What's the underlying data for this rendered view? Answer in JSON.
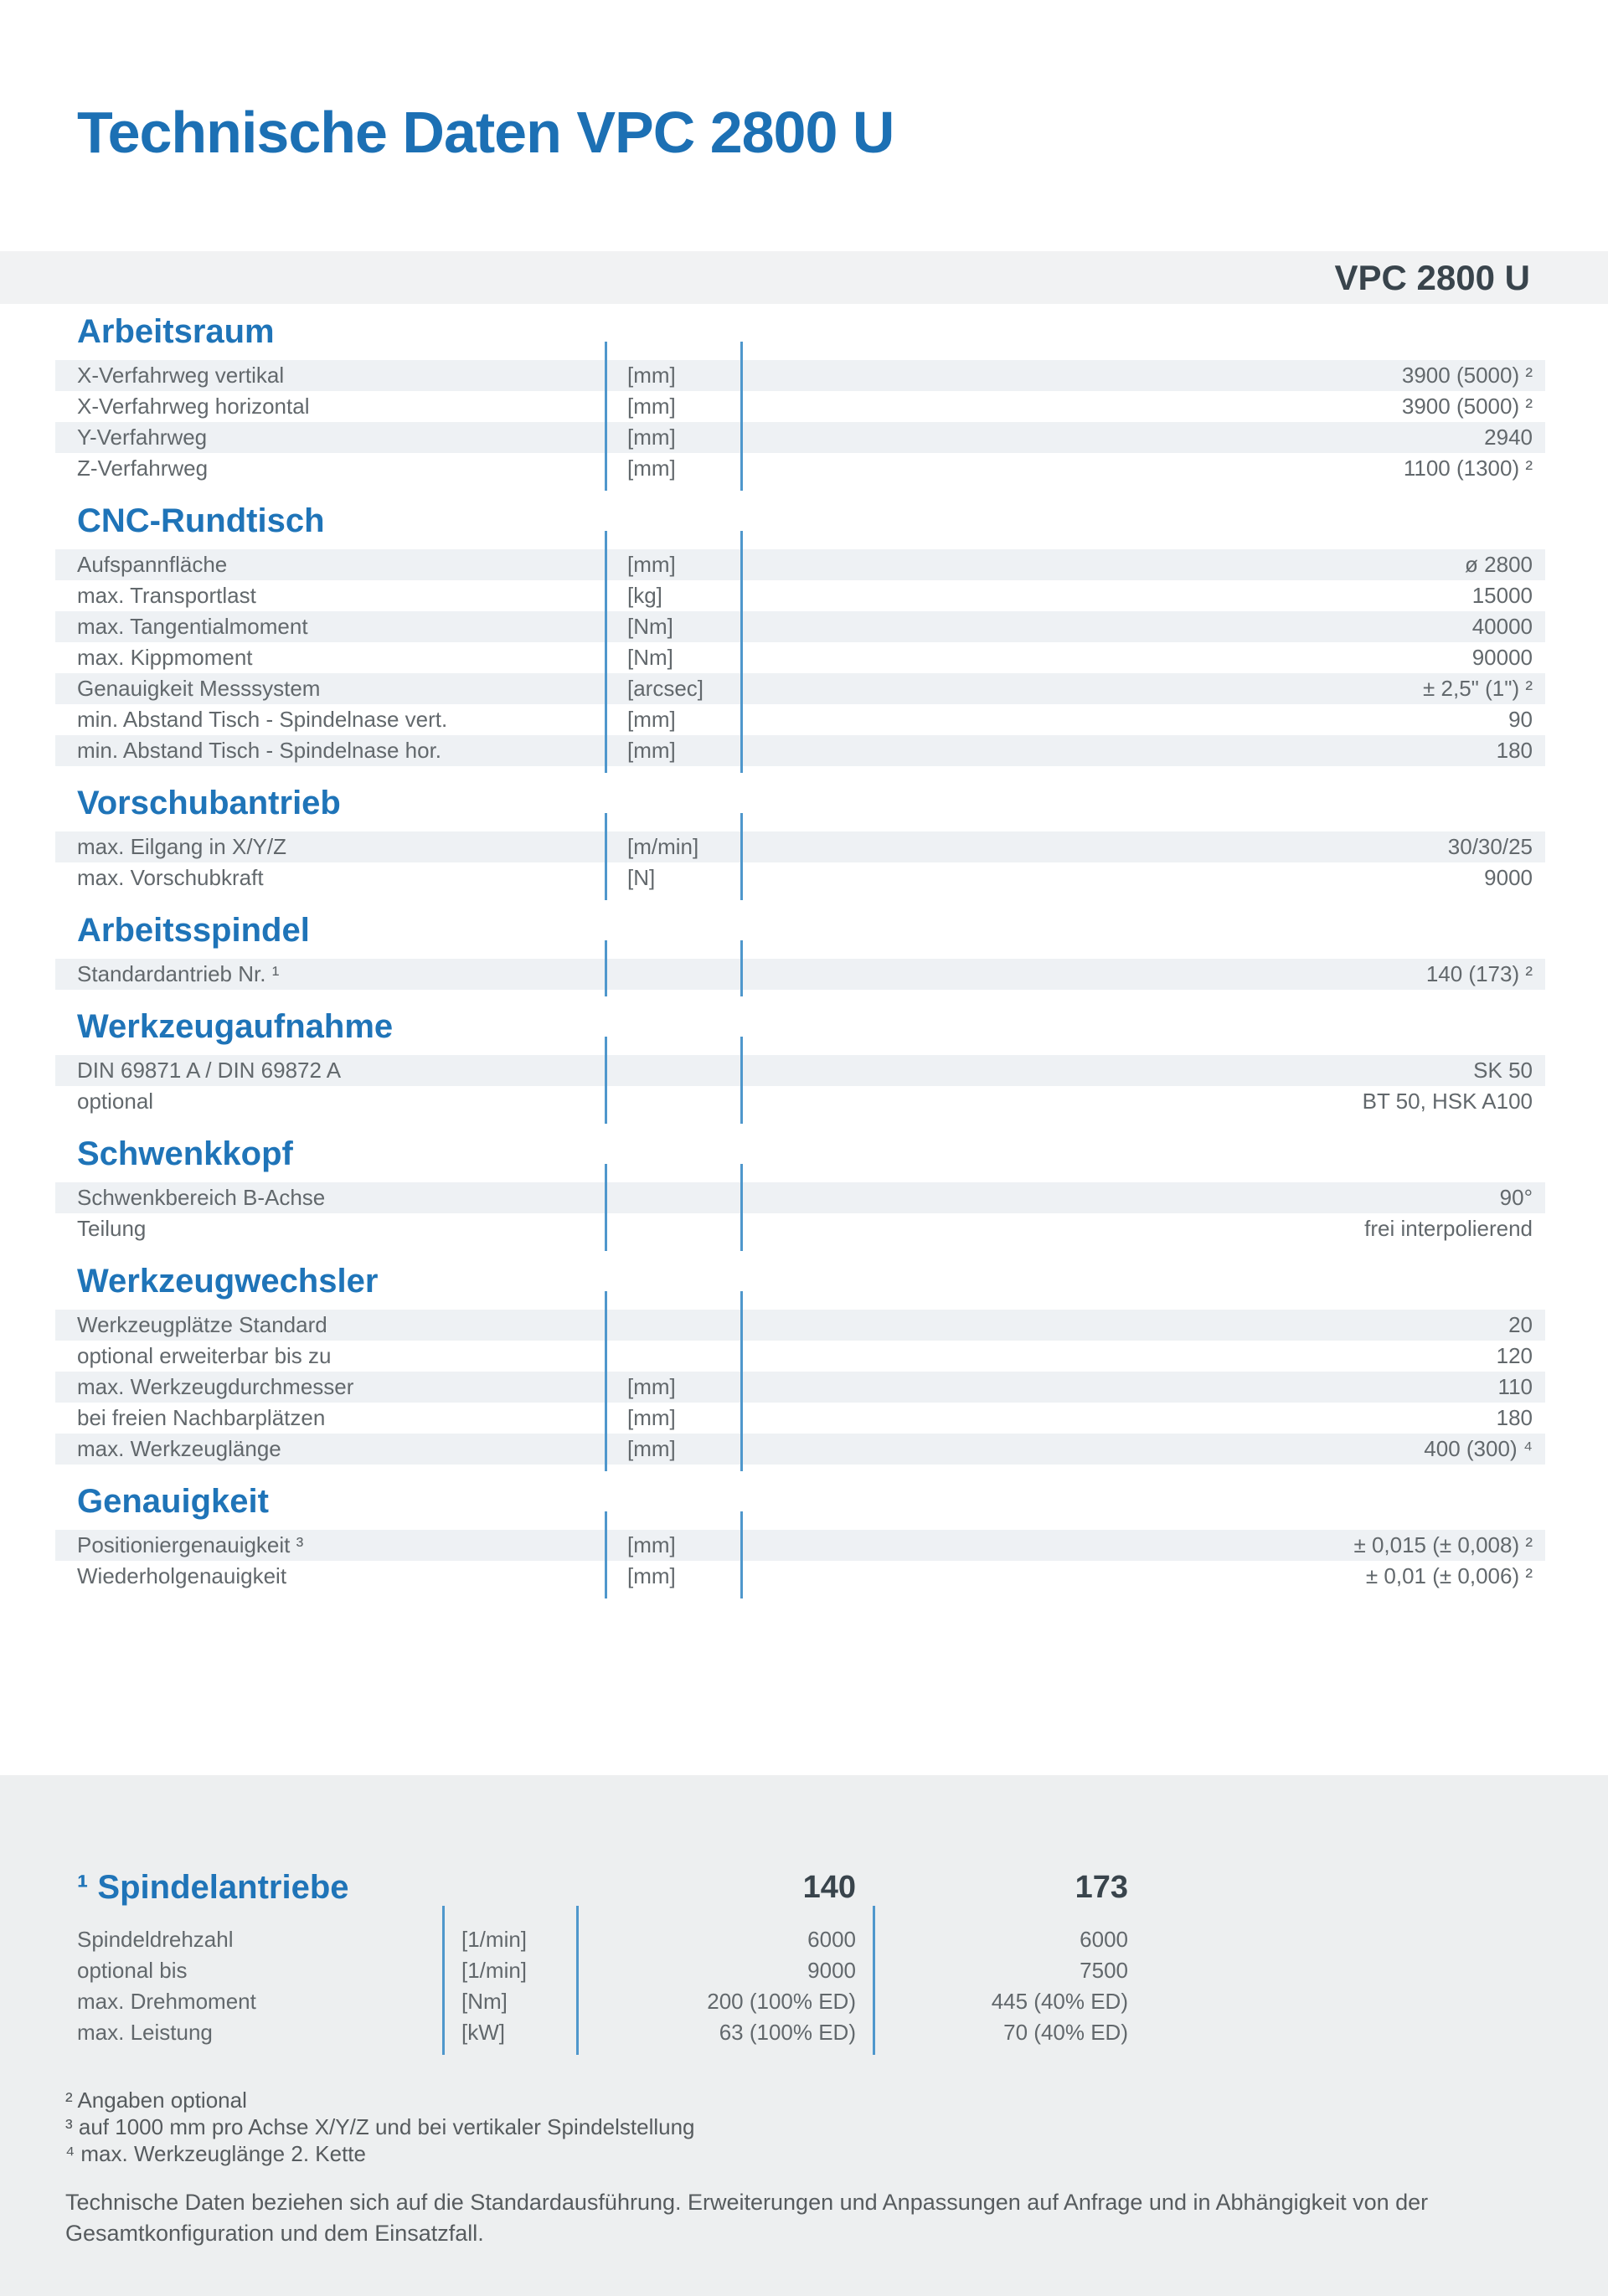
{
  "header": {
    "title": "Technische Daten VPC 2800 U",
    "model": "VPC 2800 U"
  },
  "sections": [
    {
      "title": "Arbeitsraum",
      "rows": [
        {
          "label": "X-Verfahrweg vertikal",
          "unit": "[mm]",
          "value": "3900 (5000) ²"
        },
        {
          "label": "X-Verfahrweg horizontal",
          "unit": "[mm]",
          "value": "3900 (5000) ²"
        },
        {
          "label": "Y-Verfahrweg",
          "unit": "[mm]",
          "value": "2940"
        },
        {
          "label": "Z-Verfahrweg",
          "unit": "[mm]",
          "value": "1100 (1300) ²"
        }
      ]
    },
    {
      "title": "CNC-Rundtisch",
      "rows": [
        {
          "label": "Aufspannfläche",
          "unit": "[mm]",
          "value": "ø 2800"
        },
        {
          "label": "max. Transportlast",
          "unit": "[kg]",
          "value": "15000"
        },
        {
          "label": "max. Tangentialmoment",
          "unit": "[Nm]",
          "value": "40000"
        },
        {
          "label": "max. Kippmoment",
          "unit": "[Nm]",
          "value": "90000"
        },
        {
          "label": "Genauigkeit Messsystem",
          "unit": "[arcsec]",
          "value": "± 2,5\" (1\") ²"
        },
        {
          "label": "min. Abstand Tisch - Spindelnase vert.",
          "unit": "[mm]",
          "value": "90"
        },
        {
          "label": "min. Abstand Tisch - Spindelnase hor.",
          "unit": "[mm]",
          "value": "180"
        }
      ]
    },
    {
      "title": "Vorschubantrieb",
      "rows": [
        {
          "label": "max. Eilgang in X/Y/Z",
          "unit": "[m/min]",
          "value": "30/30/25"
        },
        {
          "label": "max. Vorschubkraft",
          "unit": "[N]",
          "value": "9000"
        }
      ]
    },
    {
      "title": "Arbeitsspindel",
      "rows": [
        {
          "label": "Standardantrieb Nr. ¹",
          "unit": "",
          "value": "140 (173) ²"
        }
      ]
    },
    {
      "title": "Werkzeugaufnahme",
      "rows": [
        {
          "label": "DIN 69871 A / DIN 69872 A",
          "unit": "",
          "value": "SK 50"
        },
        {
          "label": "optional",
          "unit": "",
          "value": "BT 50, HSK A100"
        }
      ]
    },
    {
      "title": "Schwenkkopf",
      "rows": [
        {
          "label": "Schwenkbereich B-Achse",
          "unit": "",
          "value": "90°"
        },
        {
          "label": "Teilung",
          "unit": "",
          "value": "frei interpolierend"
        }
      ]
    },
    {
      "title": "Werkzeugwechsler",
      "rows": [
        {
          "label": "Werkzeugplätze Standard",
          "unit": "",
          "value": "20"
        },
        {
          "label": "optional erweiterbar bis zu",
          "unit": "",
          "value": "120"
        },
        {
          "label": "max. Werkzeugdurchmesser",
          "unit": "[mm]",
          "value": "110"
        },
        {
          "label": "bei freien Nachbarplätzen",
          "unit": "[mm]",
          "value": "180"
        },
        {
          "label": "max. Werkzeuglänge",
          "unit": "[mm]",
          "value": "400 (300) ⁴"
        }
      ]
    },
    {
      "title": "Genauigkeit",
      "rows": [
        {
          "label": "Positioniergenauigkeit ³",
          "unit": "[mm]",
          "value": "± 0,015 (± 0,008) ²"
        },
        {
          "label": "Wiederholgenauigkeit",
          "unit": "[mm]",
          "value": "± 0,01 (± 0,006) ²"
        }
      ]
    }
  ],
  "spindle_table": {
    "title": "¹ Spindelantriebe",
    "columns": [
      "140",
      "173"
    ],
    "rows": [
      {
        "label": "Spindeldrehzahl",
        "unit": "[1/min]",
        "values": [
          "6000",
          "6000"
        ]
      },
      {
        "label": "optional bis",
        "unit": "[1/min]",
        "values": [
          "9000",
          "7500"
        ]
      },
      {
        "label": "max. Drehmoment",
        "unit": "[Nm]",
        "values": [
          "200 (100% ED)",
          "445 (40% ED)"
        ]
      },
      {
        "label": "max. Leistung",
        "unit": "[kW]",
        "values": [
          "63 (100% ED)",
          "70 (40% ED)"
        ]
      }
    ]
  },
  "footnotes": [
    "² Angaben optional",
    "³ auf 1000 mm pro Achse X/Y/Z und bei vertikaler Spindelstellung",
    "⁴ max. Werkzeuglänge 2. Kette"
  ],
  "footer_note_lines": [
    "Technische Daten beziehen sich auf die Standardausführung. Erweiterungen und Anpassungen auf Anfrage und in Abhängigkeit von der",
    "Gesamtkonfiguration und dem Einsatzfall."
  ],
  "colors": {
    "accent_blue": "#1f74b8",
    "title_blue": "#1c70b4",
    "divider_line_blue": "#4f97cc",
    "band_gray": "#f1f2f3",
    "row_stripe": "#eef1f4",
    "panel_gray": "#edeff0",
    "body_text_gray": "#62686c",
    "dark_text": "#39444c"
  }
}
